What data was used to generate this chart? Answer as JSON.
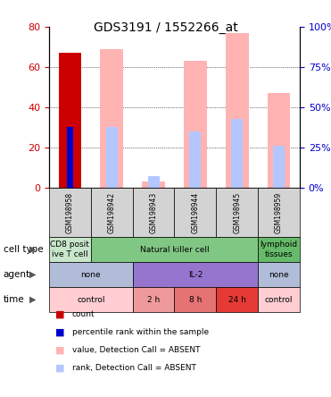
{
  "title": "GDS3191 / 1552266_at",
  "samples": [
    "GSM198958",
    "GSM198942",
    "GSM198943",
    "GSM198944",
    "GSM198945",
    "GSM198959"
  ],
  "bar_positions": [
    0,
    1,
    2,
    3,
    4,
    5
  ],
  "count_values": [
    67,
    0,
    0,
    0,
    0,
    0
  ],
  "percentile_values": [
    30,
    0,
    0,
    0,
    0,
    0
  ],
  "absent_value_bars": [
    0,
    69,
    3,
    63,
    77,
    47
  ],
  "absent_rank_bars": [
    0,
    30,
    6,
    28,
    34,
    21
  ],
  "ylim_left": [
    0,
    80
  ],
  "ylim_right": [
    0,
    100
  ],
  "yticks_left": [
    0,
    20,
    40,
    60,
    80
  ],
  "yticks_right": [
    0,
    25,
    50,
    75,
    100
  ],
  "ytick_labels_right": [
    "0%",
    "25%",
    "50%",
    "75%",
    "100%"
  ],
  "cell_type_row": {
    "groups": [
      {
        "label": "CD8 posit\nive T cell",
        "start": 0,
        "end": 1,
        "color": "#c8e6c9"
      },
      {
        "label": "Natural killer cell",
        "start": 1,
        "end": 5,
        "color": "#81c784"
      },
      {
        "label": "lymphoid\ntissues",
        "start": 5,
        "end": 6,
        "color": "#66bb6a"
      }
    ]
  },
  "agent_row": {
    "groups": [
      {
        "label": "none",
        "start": 0,
        "end": 2,
        "color": "#b0bcd8"
      },
      {
        "label": "IL-2",
        "start": 2,
        "end": 5,
        "color": "#9575cd"
      },
      {
        "label": "none",
        "start": 5,
        "end": 6,
        "color": "#b0bcd8"
      }
    ]
  },
  "time_row": {
    "groups": [
      {
        "label": "control",
        "start": 0,
        "end": 2,
        "color": "#ffcdd2"
      },
      {
        "label": "2 h",
        "start": 2,
        "end": 3,
        "color": "#ef9a9a"
      },
      {
        "label": "8 h",
        "start": 3,
        "end": 4,
        "color": "#e57373"
      },
      {
        "label": "24 h",
        "start": 4,
        "end": 5,
        "color": "#e53935"
      },
      {
        "label": "control",
        "start": 5,
        "end": 6,
        "color": "#ffcdd2"
      }
    ]
  },
  "color_count": "#cc0000",
  "color_percentile": "#0000cc",
  "color_absent_value": "#ffb3b3",
  "color_absent_rank": "#b3c6ff",
  "left_label_color": "#cc0000",
  "right_label_color": "#0000cc",
  "bar_width": 0.55,
  "plot_bg": "#ffffff",
  "grid_color": "#000000",
  "absent_value_absent": [
    false,
    true,
    true,
    true,
    true,
    true
  ],
  "count_present": [
    true,
    false,
    false,
    false,
    false,
    false
  ]
}
